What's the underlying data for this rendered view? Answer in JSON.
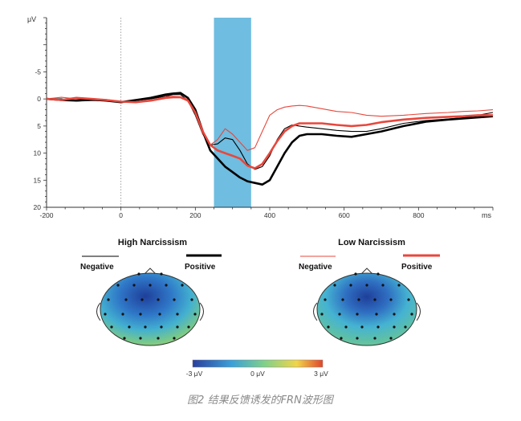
{
  "chart_data": {
    "type": "line",
    "xlabel": "ms",
    "ylabel": "μV",
    "xlim": [
      -200,
      1000
    ],
    "ylim": [
      -15,
      20
    ],
    "y_inverted": true,
    "xticks": [
      "-200",
      "0",
      "200",
      "400",
      "600",
      "800"
    ],
    "yticks": [
      "-5",
      "0",
      "5",
      "10",
      "15",
      "20"
    ],
    "highlight_window_ms": [
      250,
      350
    ],
    "highlight_color": "#6fbde0",
    "series": [
      {
        "name": "Negative",
        "group": "High Narcissism",
        "color": "#000000",
        "width": "thin",
        "x": [
          -200,
          -160,
          -120,
          -80,
          -40,
          0,
          40,
          80,
          120,
          140,
          160,
          180,
          200,
          220,
          240,
          260,
          280,
          300,
          320,
          340,
          360,
          380,
          400,
          420,
          440,
          460,
          480,
          500,
          540,
          580,
          620,
          660,
          700,
          760,
          820,
          880,
          920,
          960,
          1000
        ],
        "y": [
          0,
          0,
          0.4,
          0.3,
          0.3,
          0.5,
          0.3,
          0,
          -0.5,
          -0.8,
          -0.8,
          0.3,
          3,
          6.5,
          8.5,
          8.3,
          7.2,
          7.5,
          9.5,
          12,
          13,
          12.5,
          10.5,
          7.5,
          5.5,
          4.8,
          5,
          5.2,
          5.5,
          5.8,
          6,
          6,
          5.5,
          4.5,
          4,
          3.7,
          3.5,
          3,
          2.5
        ]
      },
      {
        "name": "Positive",
        "group": "High Narcissism",
        "color": "#000000",
        "width": "thick",
        "x": [
          -200,
          -160,
          -120,
          -80,
          -40,
          0,
          40,
          80,
          120,
          140,
          160,
          180,
          200,
          220,
          240,
          260,
          280,
          300,
          320,
          340,
          360,
          380,
          400,
          420,
          440,
          460,
          480,
          500,
          540,
          580,
          620,
          660,
          700,
          760,
          820,
          880,
          920,
          960,
          1000
        ],
        "y": [
          0,
          0.2,
          0.3,
          0.1,
          0.3,
          0.6,
          0.2,
          -0.2,
          -0.8,
          -1,
          -1.1,
          -0.2,
          2,
          6,
          9.5,
          11,
          12.5,
          13.5,
          14.5,
          15.2,
          15.5,
          15.8,
          15,
          12.5,
          10,
          8,
          6.8,
          6.5,
          6.5,
          6.8,
          7,
          6.5,
          6,
          5,
          4.2,
          3.8,
          3.6,
          3.4,
          3.2
        ]
      },
      {
        "name": "Negative",
        "group": "Low Narcissism",
        "color": "#e8473c",
        "width": "thin",
        "x": [
          -200,
          -160,
          -120,
          -80,
          -40,
          0,
          40,
          80,
          120,
          140,
          160,
          180,
          200,
          220,
          240,
          260,
          280,
          300,
          320,
          340,
          360,
          380,
          400,
          420,
          440,
          460,
          480,
          500,
          540,
          580,
          620,
          660,
          700,
          760,
          820,
          880,
          920,
          960,
          1000
        ],
        "y": [
          0,
          -0.3,
          0,
          0.2,
          0.1,
          0.5,
          0.5,
          0.3,
          -0.4,
          -0.5,
          -0.4,
          0.1,
          2.5,
          6.5,
          8.5,
          7.5,
          5.5,
          6.5,
          8,
          9.5,
          9,
          6,
          3,
          2,
          1.5,
          1.3,
          1.2,
          1.3,
          1.8,
          2.3,
          2.5,
          3,
          3.2,
          3,
          2.7,
          2.5,
          2.3,
          2.2,
          2
        ]
      },
      {
        "name": "Positive",
        "group": "Low Narcissism",
        "color": "#e8473c",
        "width": "thick",
        "x": [
          -200,
          -160,
          -120,
          -80,
          -40,
          0,
          40,
          80,
          120,
          140,
          160,
          180,
          200,
          220,
          240,
          260,
          280,
          300,
          320,
          340,
          360,
          380,
          400,
          420,
          440,
          460,
          480,
          500,
          540,
          580,
          620,
          660,
          700,
          760,
          820,
          880,
          920,
          960,
          1000
        ],
        "y": [
          0,
          0.2,
          -0.2,
          0,
          0.2,
          0.5,
          0.6,
          0.3,
          -0.2,
          -0.3,
          -0.3,
          0.3,
          2.5,
          6,
          8.5,
          9.5,
          10,
          10.5,
          11,
          12.3,
          12.8,
          12,
          10,
          7.8,
          6,
          5,
          4.5,
          4.5,
          4.5,
          4.8,
          5,
          4.8,
          4.3,
          3.8,
          3.5,
          3.3,
          3.2,
          3,
          3
        ]
      }
    ]
  },
  "topomaps": {
    "high": {
      "title": "High Narcissism",
      "legend": [
        {
          "label": "Negative",
          "color": "#000000",
          "width": "thin"
        },
        {
          "label": "Positive",
          "color": "#000000",
          "width": "thick"
        }
      ]
    },
    "low": {
      "title": "Low Narcissism",
      "legend": [
        {
          "label": "Negative",
          "color": "#e8473c",
          "width": "thin"
        },
        {
          "label": "Positive",
          "color": "#e8473c",
          "width": "thick"
        }
      ]
    },
    "colorbar": {
      "min_label": "-3 μV",
      "mid_label": "0 μV",
      "max_label": "3 μV",
      "colors": [
        "#2a3f9d",
        "#3aa0d8",
        "#7fd08a",
        "#f1d54a",
        "#e0452c"
      ]
    }
  },
  "caption": "图2 结果反馈诱发的FRN波形图"
}
